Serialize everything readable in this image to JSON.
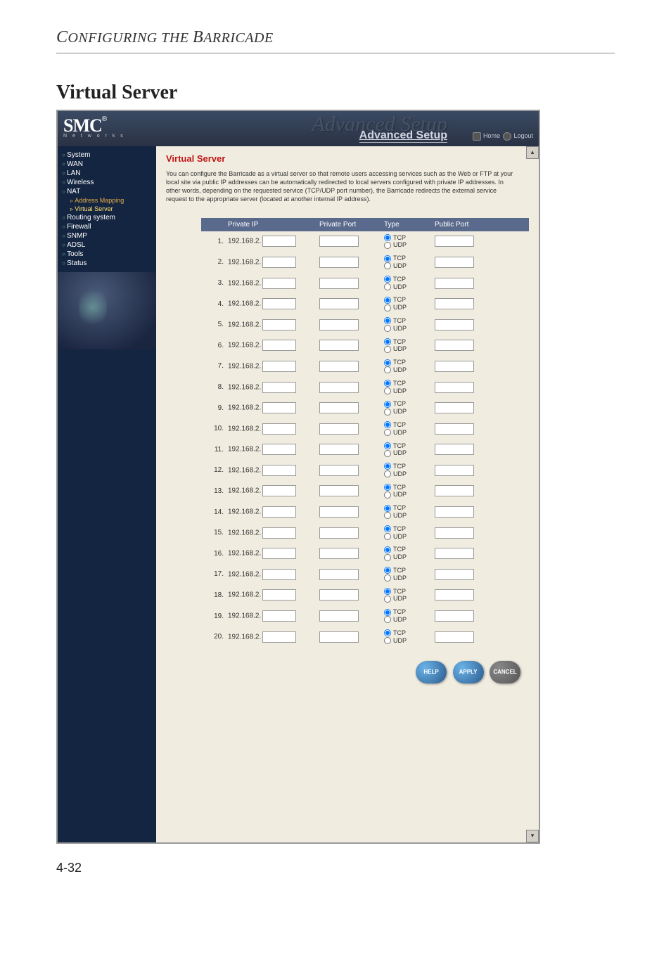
{
  "chapter": {
    "prefix": "C",
    "mid": "ONFIGURING THE ",
    "b": "B",
    "suffix": "ARRICADE"
  },
  "section_title": "Virtual Server",
  "logo": {
    "brand": "SMC",
    "reg": "®",
    "tag": "N e t w o r k s"
  },
  "header": {
    "bg_title": "Advanced Setup",
    "fg_title": "Advanced Setup",
    "home": "Home",
    "logout": "Logout"
  },
  "sidebar": {
    "items": [
      {
        "label": "System"
      },
      {
        "label": "WAN"
      },
      {
        "label": "LAN"
      },
      {
        "label": "Wireless"
      },
      {
        "label": "NAT"
      },
      {
        "label": "Routing system"
      },
      {
        "label": "Firewall"
      },
      {
        "label": "SNMP"
      },
      {
        "label": "ADSL"
      },
      {
        "label": "Tools"
      },
      {
        "label": "Status"
      }
    ],
    "nat_subs": [
      {
        "label": "Address Mapping"
      },
      {
        "label": "Virtual Server",
        "active": true
      }
    ]
  },
  "content": {
    "title": "Virtual Server",
    "desc": "You can configure the Barricade as a virtual server so that remote users accessing services such as the Web or FTP at your local site via public IP addresses can be automatically redirected to local servers configured with private IP addresses. In other words, depending on the requested service (TCP/UDP port number), the Barricade redirects the external service request to the appropriate server (located at another internal IP address).",
    "headers": {
      "private_ip": "Private IP",
      "private_port": "Private Port",
      "type": "Type",
      "public_port": "Public Port"
    },
    "ip_prefix": "192.168.2.",
    "type_tcp": "TCP",
    "type_udp": "UDP",
    "rows": [
      1,
      2,
      3,
      4,
      5,
      6,
      7,
      8,
      9,
      10,
      11,
      12,
      13,
      14,
      15,
      16,
      17,
      18,
      19,
      20
    ],
    "buttons": {
      "help": "HELP",
      "apply": "APPLY",
      "cancel": "CANCEL"
    }
  },
  "pagenum": "4-32",
  "colors": {
    "sidebar_bg": "#142541",
    "content_bg": "#f0ece0",
    "hdr_bg": "#5a6a8c",
    "title_red": "#c01818"
  }
}
